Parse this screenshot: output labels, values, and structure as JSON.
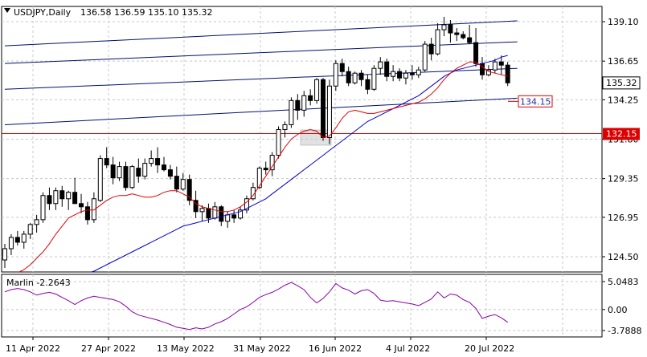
{
  "header": {
    "symbol": "USDJPY,Daily",
    "ohlc": "136.58 136.59 135.10 135.32"
  },
  "chart_data": {
    "type": "candlestick",
    "main": {
      "y_ticks": [
        "139.10",
        "136.65",
        "134.25",
        "131.80",
        "129.35",
        "126.95",
        "124.50"
      ],
      "y_tick_values": [
        139.1,
        136.65,
        134.25,
        131.8,
        129.35,
        126.95,
        124.5
      ],
      "x_ticks": [
        "11 Apr 2022",
        "27 Apr 2022",
        "13 May 2022",
        "31 May 2022",
        "16 Jun 2022",
        "4 Jul 2022",
        "20 Jul 2022"
      ],
      "price_label": "135.32",
      "price_value": 135.32,
      "support_label": "132.15",
      "support_value": 132.15,
      "target_label": "134.15",
      "target_value": 134.15,
      "candles": [
        [
          124.3,
          125.3,
          123.8,
          125.0
        ],
        [
          125.0,
          125.9,
          124.6,
          125.7
        ],
        [
          125.7,
          126.1,
          125.2,
          125.4
        ],
        [
          125.4,
          126.1,
          125.0,
          125.9
        ],
        [
          125.9,
          126.6,
          125.6,
          126.5
        ],
        [
          126.5,
          127.1,
          126.0,
          126.8
        ],
        [
          126.8,
          128.5,
          126.6,
          128.3
        ],
        [
          128.3,
          128.8,
          127.4,
          127.8
        ],
        [
          127.8,
          128.8,
          127.4,
          128.6
        ],
        [
          128.6,
          128.9,
          127.6,
          128.1
        ],
        [
          128.1,
          128.6,
          127.4,
          128.5
        ],
        [
          128.5,
          129.4,
          127.8,
          127.8
        ],
        [
          127.8,
          128.4,
          127.2,
          127.6
        ],
        [
          127.6,
          127.9,
          126.5,
          126.8
        ],
        [
          126.8,
          128.5,
          126.6,
          128.1
        ],
        [
          128.0,
          130.8,
          127.9,
          130.6
        ],
        [
          130.6,
          131.3,
          130.0,
          130.2
        ],
        [
          130.2,
          130.7,
          129.0,
          129.4
        ],
        [
          129.4,
          130.4,
          129.2,
          130.1
        ],
        [
          130.1,
          130.4,
          128.6,
          128.8
        ],
        [
          128.8,
          130.2,
          128.7,
          130.1
        ],
        [
          130.0,
          130.6,
          129.1,
          129.5
        ],
        [
          129.5,
          130.6,
          129.3,
          130.3
        ],
        [
          130.3,
          131.1,
          130.1,
          130.6
        ],
        [
          130.6,
          131.3,
          129.7,
          130.2
        ],
        [
          130.2,
          130.7,
          129.8,
          129.9
        ],
        [
          129.9,
          130.2,
          129.3,
          129.5
        ],
        [
          129.5,
          130.1,
          128.5,
          128.7
        ],
        [
          128.7,
          129.7,
          128.6,
          129.3
        ],
        [
          129.3,
          129.6,
          127.7,
          128.0
        ],
        [
          128.0,
          128.6,
          126.9,
          127.3
        ],
        [
          127.3,
          127.7,
          126.7,
          127.5
        ],
        [
          127.5,
          127.8,
          126.6,
          126.9
        ],
        [
          126.9,
          127.9,
          126.8,
          127.6
        ],
        [
          127.6,
          127.7,
          126.4,
          126.7
        ],
        [
          126.7,
          127.3,
          126.3,
          127.1
        ],
        [
          127.1,
          127.4,
          126.6,
          126.9
        ],
        [
          126.9,
          127.6,
          126.8,
          127.4
        ],
        [
          127.4,
          128.3,
          127.2,
          128.1
        ],
        [
          128.1,
          129.1,
          128.0,
          128.8
        ],
        [
          128.8,
          130.1,
          128.7,
          130.0
        ],
        [
          130.0,
          130.4,
          129.6,
          129.9
        ],
        [
          129.9,
          131.0,
          129.5,
          130.8
        ],
        [
          130.8,
          132.6,
          130.6,
          132.4
        ],
        [
          132.4,
          132.9,
          131.9,
          132.7
        ],
        [
          132.7,
          134.4,
          132.5,
          134.2
        ],
        [
          134.2,
          134.6,
          133.0,
          133.6
        ],
        [
          133.6,
          134.8,
          133.2,
          134.5
        ],
        [
          134.5,
          134.9,
          133.9,
          134.2
        ],
        [
          134.2,
          135.6,
          134.0,
          135.5
        ],
        [
          135.5,
          135.6,
          131.7,
          131.9
        ],
        [
          131.9,
          135.5,
          131.5,
          135.1
        ],
        [
          135.1,
          136.7,
          134.8,
          136.5
        ],
        [
          136.5,
          136.8,
          135.7,
          136.0
        ],
        [
          136.0,
          136.3,
          135.1,
          135.3
        ],
        [
          135.3,
          136.0,
          135.2,
          135.9
        ],
        [
          135.9,
          136.1,
          135.1,
          135.5
        ],
        [
          135.5,
          135.8,
          134.6,
          134.9
        ],
        [
          134.9,
          136.4,
          134.8,
          136.2
        ],
        [
          136.2,
          136.9,
          135.8,
          136.6
        ],
        [
          136.6,
          136.8,
          135.4,
          135.7
        ],
        [
          135.7,
          136.4,
          135.4,
          136.0
        ],
        [
          136.0,
          136.2,
          135.4,
          135.6
        ],
        [
          135.6,
          136.1,
          135.2,
          135.9
        ],
        [
          135.9,
          136.4,
          135.5,
          135.8
        ],
        [
          135.8,
          136.3,
          135.6,
          136.1
        ],
        [
          136.1,
          137.9,
          136.0,
          137.7
        ],
        [
          137.7,
          138.1,
          136.7,
          137.1
        ],
        [
          137.1,
          139.0,
          137.0,
          138.6
        ],
        [
          138.6,
          139.4,
          138.2,
          138.9
        ],
        [
          138.9,
          139.2,
          137.8,
          138.4
        ],
        [
          138.4,
          138.7,
          137.9,
          138.3
        ],
        [
          138.3,
          138.5,
          138.0,
          138.1
        ],
        [
          138.1,
          138.9,
          137.7,
          137.8
        ],
        [
          137.8,
          138.7,
          136.3,
          136.5
        ],
        [
          136.5,
          136.9,
          135.5,
          135.8
        ],
        [
          135.8,
          136.4,
          135.7,
          136.1
        ],
        [
          136.1,
          136.8,
          135.9,
          136.6
        ],
        [
          136.6,
          137.0,
          135.8,
          136.4
        ],
        [
          136.4,
          136.6,
          135.1,
          135.3
        ]
      ],
      "ma_fast": [
        123.0,
        123.3,
        123.5,
        123.7,
        124.0,
        124.4,
        124.8,
        125.3,
        125.9,
        126.4,
        126.9,
        127.1,
        127.3,
        127.4,
        127.4,
        127.7,
        128.0,
        128.2,
        128.3,
        128.3,
        128.4,
        128.3,
        128.2,
        128.2,
        128.3,
        128.5,
        128.6,
        128.6,
        128.4,
        128.2,
        127.8,
        127.6,
        127.5,
        127.4,
        127.3,
        127.3,
        127.4,
        127.6,
        127.9,
        128.3,
        128.9,
        129.5,
        130.1,
        130.7,
        131.3,
        131.8,
        132.1,
        132.3,
        132.4,
        132.3,
        131.9,
        132.0,
        132.5,
        133.1,
        133.5,
        133.6,
        133.5,
        133.4,
        133.4,
        133.5,
        133.6,
        133.7,
        133.8,
        133.9,
        134.0,
        134.1,
        134.3,
        134.6,
        135.0,
        135.5,
        135.9,
        136.2,
        136.4,
        136.6,
        136.6,
        136.3,
        136.0,
        135.9,
        135.8,
        135.7
      ],
      "ma_slow": [
        120.6,
        120.9,
        121.1,
        121.4,
        121.6,
        121.8,
        122.0,
        122.3,
        122.5,
        122.7,
        122.9,
        123.1,
        123.3,
        123.5,
        123.6,
        123.8,
        124.0,
        124.2,
        124.4,
        124.6,
        124.8,
        125.0,
        125.2,
        125.4,
        125.6,
        125.8,
        126.0,
        126.2,
        126.4,
        126.5,
        126.6,
        126.7,
        126.8,
        126.9,
        127.0,
        127.1,
        127.2,
        127.3,
        127.5,
        127.7,
        127.9,
        128.1,
        128.4,
        128.7,
        129.0,
        129.3,
        129.6,
        129.9,
        130.2,
        130.5,
        130.8,
        131.1,
        131.4,
        131.7,
        132.0,
        132.3,
        132.6,
        132.9,
        133.1,
        133.3,
        133.5,
        133.7,
        133.9,
        134.1,
        134.3,
        134.5,
        134.8,
        135.1,
        135.4,
        135.7,
        135.9,
        136.1,
        136.2,
        136.3,
        136.4,
        136.5,
        136.6,
        136.7,
        136.9,
        137.0
      ],
      "channel_lines": [
        {
          "p1": [
            0,
            137.6
          ],
          "p2": [
            79,
            139.15
          ]
        },
        {
          "p1": [
            0,
            136.5
          ],
          "p2": [
            79,
            137.85
          ]
        },
        {
          "p1": [
            0,
            134.9
          ],
          "p2": [
            79,
            136.2
          ]
        },
        {
          "p1": [
            0,
            132.7
          ],
          "p2": [
            79,
            134.35
          ]
        }
      ]
    },
    "oscillator": {
      "label": "Marlin -2.2643",
      "y_ticks": [
        "5.0483",
        "0.00",
        "-3.7888"
      ],
      "y_tick_values": [
        5.0483,
        0.0,
        -3.7888
      ],
      "values": [
        3.2,
        3.6,
        3.8,
        3.6,
        3.2,
        2.6,
        2.9,
        3.1,
        2.8,
        2.2,
        1.6,
        0.9,
        1.6,
        2.1,
        2.4,
        2.2,
        2.0,
        1.8,
        1.4,
        0.6,
        -0.4,
        -1.0,
        -1.3,
        -1.6,
        -1.9,
        -2.3,
        -2.7,
        -3.2,
        -3.4,
        -3.6,
        -3.3,
        -3.5,
        -3.2,
        -2.6,
        -2.2,
        -1.6,
        -0.8,
        0.0,
        0.5,
        1.3,
        2.2,
        2.7,
        3.1,
        3.7,
        4.4,
        4.9,
        4.3,
        3.6,
        2.2,
        1.2,
        2.0,
        3.2,
        4.7,
        3.9,
        3.5,
        2.8,
        3.4,
        3.6,
        2.9,
        1.7,
        1.5,
        1.6,
        1.4,
        1.2,
        1.0,
        0.7,
        1.3,
        1.9,
        3.2,
        2.1,
        2.8,
        2.6,
        1.8,
        1.3,
        0.2,
        -1.6,
        -1.2,
        -0.9,
        -1.5,
        -2.3
      ]
    },
    "colors": {
      "bull": "#ffffff",
      "bear": "#000000",
      "ma_fast": "#e00000",
      "ma_slow": "#0000d0",
      "channel": "#001070",
      "support": "#dd0000",
      "oscillator": "#8a00a8",
      "grid": "#c8c8c8"
    }
  }
}
